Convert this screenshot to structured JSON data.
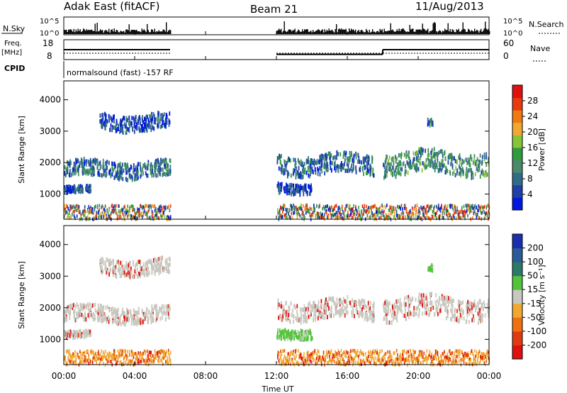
{
  "header": {
    "station": "Adak East (fitACF)",
    "beam": "Beam 21",
    "date": "11/Aug/2013"
  },
  "noise_panel": {
    "left_label": "N.Sky",
    "right_label": "N.Search",
    "tick_top": "10^5",
    "tick_bottom": "10^0"
  },
  "freq_panel": {
    "label_line1": "Freq.",
    "label_line2": "[MHz]",
    "left_ticks": [
      "18",
      "8"
    ],
    "right_ticks": [
      "60",
      "0"
    ],
    "right_label": "Nave"
  },
  "cpid_panel": {
    "label": "CPID",
    "program": "normalsound (fast) -157 RF"
  },
  "power_panel": {
    "ylabel": "Slant Range [km]",
    "yticks": [
      "4000",
      "3000",
      "2000",
      "1000"
    ],
    "colorbar_label": "Power [dB]",
    "colorbar_ticks": [
      "28",
      "24",
      "20",
      "16",
      "12",
      "8",
      "4"
    ],
    "colors": [
      "#0018e0",
      "#1f3fa8",
      "#2f6c8a",
      "#4a8a6a",
      "#2f9a3e",
      "#86c43a",
      "#f0a830",
      "#f07a10",
      "#e83a10",
      "#e01010"
    ]
  },
  "velocity_panel": {
    "ylabel": "Slant Range [km]",
    "yticks": [
      "4000",
      "3000",
      "2000",
      "1000"
    ],
    "colorbar_label": "Velocity [m s⁻¹]",
    "colorbar_ticks": [
      "200",
      "100",
      "50",
      "15",
      "-15",
      "-50",
      "-100",
      "-200"
    ],
    "colors": [
      "#1a2fb0",
      "#2a5a9a",
      "#2a7a6a",
      "#52c43a",
      "#c8c8c0",
      "#f0a830",
      "#f07010",
      "#e03a10",
      "#e01010"
    ]
  },
  "xaxis": {
    "label": "Time UT",
    "ticks": [
      "00:00",
      "04:00",
      "08:00",
      "12:00",
      "16:00",
      "20:00",
      "00:00"
    ]
  },
  "chart_data": {
    "type": "heatmap",
    "title": "Adak East (fitACF) Beam 21 11/Aug/2013",
    "xlabel": "Time UT",
    "ylabel": "Slant Range [km]",
    "xlim_hours": [
      0,
      24
    ],
    "ylim_km": [
      200,
      4600
    ],
    "data_gap_hours": [
      6,
      12
    ],
    "frequency_mhz": [
      {
        "start": 0,
        "end": 6,
        "value": 13
      },
      {
        "start": 12,
        "end": 18,
        "value": 10
      },
      {
        "start": 18,
        "end": 24,
        "value": 13
      }
    ],
    "scatter_bands": [
      {
        "start": 0,
        "end": 6,
        "range_km": [
          1600,
          2100
        ],
        "power_db": 12,
        "velocity": -10
      },
      {
        "start": 0,
        "end": 1.5,
        "range_km": [
          1100,
          1300
        ],
        "power_db": 6,
        "velocity": -10
      },
      {
        "start": 2,
        "end": 6,
        "range_km": [
          3100,
          3600
        ],
        "power_db": 6,
        "velocity": -20
      },
      {
        "start": 12,
        "end": 14,
        "range_km": [
          1100,
          1400
        ],
        "power_db": 8,
        "velocity": 40
      },
      {
        "start": 12,
        "end": 17.5,
        "range_km": [
          1700,
          2300
        ],
        "power_db": 10,
        "velocity": -10
      },
      {
        "start": 18,
        "end": 24,
        "range_km": [
          1700,
          2400
        ],
        "power_db": 16,
        "velocity": -10
      },
      {
        "start": 20.5,
        "end": 20.8,
        "range_km": [
          3200,
          3400
        ],
        "power_db": 10,
        "velocity": 60
      }
    ],
    "power_colorbar_db": [
      4,
      8,
      12,
      16,
      20,
      24,
      28
    ],
    "velocity_colorbar": [
      200,
      100,
      50,
      15,
      -15,
      -50,
      -100,
      -200
    ]
  }
}
